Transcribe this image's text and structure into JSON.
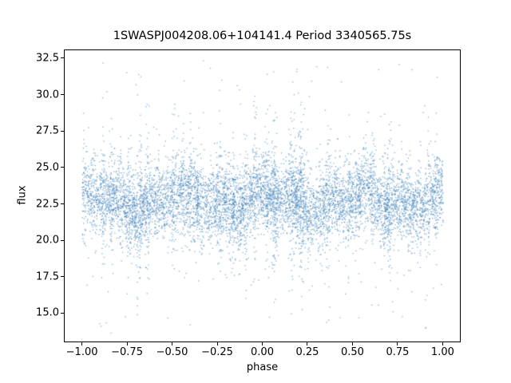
{
  "chart_data": {
    "type": "scatter",
    "title": "1SWASPJ004208.06+104141.4 Period 3340565.75s",
    "xlabel": "phase",
    "ylabel": "flux",
    "xlim": [
      -1.1,
      1.1
    ],
    "ylim": [
      13.0,
      33.1
    ],
    "xticks": [
      -1.0,
      -0.75,
      -0.5,
      -0.25,
      0.0,
      0.25,
      0.5,
      0.75,
      1.0
    ],
    "xtick_labels": [
      "−1.00",
      "−0.75",
      "−0.50",
      "−0.25",
      "0.00",
      "0.25",
      "0.50",
      "0.75",
      "1.00"
    ],
    "yticks": [
      15.0,
      17.5,
      20.0,
      22.5,
      25.0,
      27.5,
      30.0,
      32.5
    ],
    "ytick_labels": [
      "15.0",
      "17.5",
      "20.0",
      "22.5",
      "25.0",
      "27.5",
      "30.0",
      "32.5"
    ],
    "grid": false,
    "legend": "none",
    "marker_color": "#3f81b8",
    "marker_alpha": 0.65,
    "marker_size_px": 1.3,
    "background": "#ffffff",
    "spine_color": "#000000",
    "generation": {
      "comment": "dense folded light curve; core flux band 20-26 centered ~22.8 with vertical streaky clusters and sparse outliers 14-32.5 across phase -1..1",
      "seed": 11,
      "n_points": 9000,
      "x_min": -1.0,
      "x_max": 1.0,
      "base_flux": 22.75,
      "wave1_amp": 0.45,
      "wave1_freq": 2.0,
      "wave1_phase": 1.0,
      "wave2_amp": 0.35,
      "wave2_freq": 5.0,
      "wave2_phase": 2.3,
      "noise_base": 0.75,
      "noise_mod": 0.85,
      "noise_freq": 10.0,
      "noise_phase": 0.7,
      "n_clusters": 36,
      "cluster_fraction": 0.18,
      "cluster_jitter": 0.008,
      "cluster_sd_boost": 1.9,
      "outlier_fraction": 0.02,
      "outlier_low": 13.9,
      "outlier_high": 32.6
    }
  }
}
